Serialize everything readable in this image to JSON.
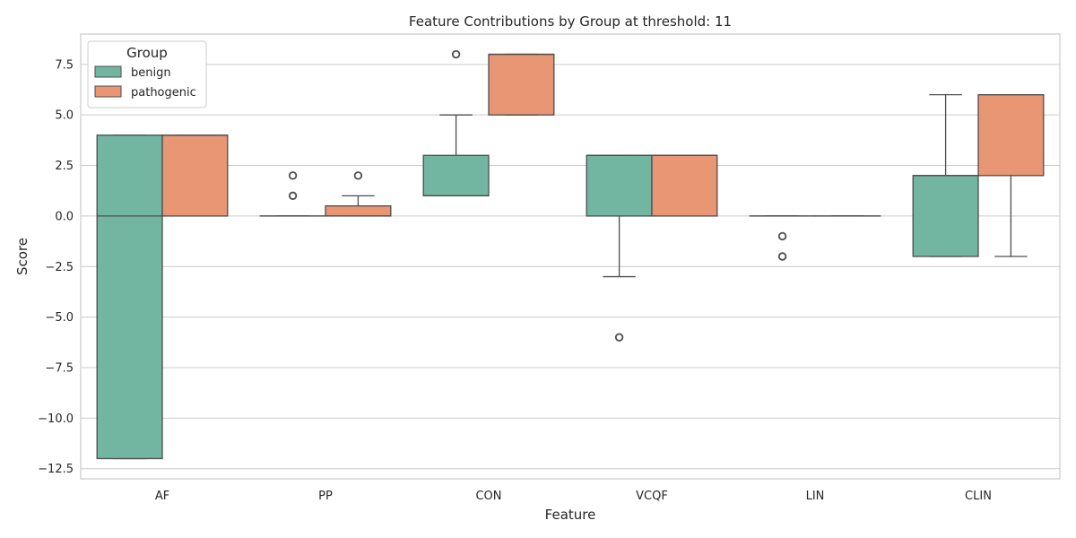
{
  "chart_data": {
    "type": "box",
    "title": "Feature Contributions by Group at threshold: 11",
    "xlabel": "Feature",
    "ylabel": "Score",
    "ylim": [
      -13,
      9
    ],
    "yticks": [
      7.5,
      5.0,
      2.5,
      0.0,
      -2.5,
      -5.0,
      -7.5,
      -10.0,
      -12.5
    ],
    "ytick_labels": [
      "7.5",
      "5.0",
      "2.5",
      "0.0",
      "−2.5",
      "−5.0",
      "−7.5",
      "−10.0",
      "−12.5"
    ],
    "grid": true,
    "categories": [
      "AF",
      "PP",
      "CON",
      "VCQF",
      "LIN",
      "CLIN"
    ],
    "legend": {
      "title": "Group",
      "placement": "top-left",
      "entries": [
        "benign",
        "pathogenic"
      ]
    },
    "colors": {
      "benign": "#72b6a1",
      "pathogenic": "#e99675",
      "edge": "#4d4d4d",
      "grid": "#cccccc",
      "axes": "#cccccc"
    },
    "series": [
      {
        "name": "benign",
        "boxes": [
          {
            "category": "AF",
            "whisker_low": -12,
            "q1": -12,
            "median": 0,
            "q3": 4,
            "whisker_high": 4,
            "outliers": []
          },
          {
            "category": "PP",
            "whisker_low": 0,
            "q1": 0,
            "median": 0,
            "q3": 0,
            "whisker_high": 0,
            "outliers": [
              1,
              2
            ]
          },
          {
            "category": "CON",
            "whisker_low": 1,
            "q1": 1,
            "median": 1,
            "q3": 3,
            "whisker_high": 5,
            "outliers": [
              8
            ]
          },
          {
            "category": "VCQF",
            "whisker_low": -3,
            "q1": 0,
            "median": 3,
            "q3": 3,
            "whisker_high": 3,
            "outliers": [
              -6
            ]
          },
          {
            "category": "LIN",
            "whisker_low": 0,
            "q1": 0,
            "median": 0,
            "q3": 0,
            "whisker_high": 0,
            "outliers": [
              -1,
              -2
            ]
          },
          {
            "category": "CLIN",
            "whisker_low": -2,
            "q1": -2,
            "median": 2,
            "q3": 2,
            "whisker_high": 6,
            "outliers": []
          }
        ]
      },
      {
        "name": "pathogenic",
        "boxes": [
          {
            "category": "AF",
            "whisker_low": 0,
            "q1": 0,
            "median": 4,
            "q3": 4,
            "whisker_high": 4,
            "outliers": []
          },
          {
            "category": "PP",
            "whisker_low": 0,
            "q1": 0,
            "median": 0,
            "q3": 0.5,
            "whisker_high": 1,
            "outliers": [
              2
            ]
          },
          {
            "category": "CON",
            "whisker_low": 5,
            "q1": 5,
            "median": 8,
            "q3": 8,
            "whisker_high": 8,
            "outliers": []
          },
          {
            "category": "VCQF",
            "whisker_low": 0,
            "q1": 0,
            "median": 3,
            "q3": 3,
            "whisker_high": 3,
            "outliers": []
          },
          {
            "category": "LIN",
            "whisker_low": 0,
            "q1": 0,
            "median": 0,
            "q3": 0,
            "whisker_high": 0,
            "outliers": []
          },
          {
            "category": "CLIN",
            "whisker_low": -2,
            "q1": 2,
            "median": 6,
            "q3": 6,
            "whisker_high": 6,
            "outliers": []
          }
        ]
      }
    ]
  }
}
